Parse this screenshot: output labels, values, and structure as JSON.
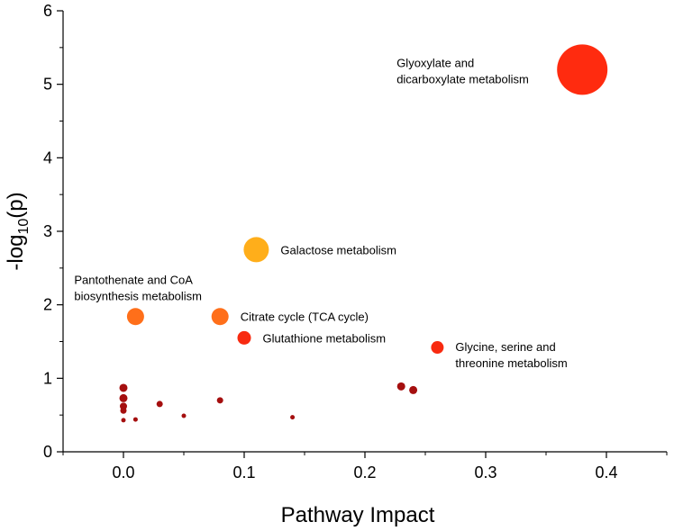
{
  "chart_data": {
    "type": "scatter",
    "title": "",
    "xlabel": "Pathway Impact",
    "ylabel_parts": [
      "-log",
      "10",
      "(p)"
    ],
    "xlim": [
      -0.05,
      0.45
    ],
    "ylim": [
      0,
      6
    ],
    "x_ticks": [
      0.0,
      0.1,
      0.2,
      0.3,
      0.4
    ],
    "x_tick_labels": [
      "0.0",
      "0.1",
      "0.2",
      "0.3",
      "0.4"
    ],
    "y_ticks": [
      0,
      1,
      2,
      3,
      4,
      5,
      6
    ],
    "y_tick_labels": [
      "0",
      "1",
      "2",
      "3",
      "4",
      "5",
      "6"
    ],
    "grid": false,
    "legend": "none",
    "points": [
      {
        "x": 0.38,
        "y": 5.2,
        "size": 28,
        "color": "#ff2b0f",
        "label": [
          "Glyoxylate and",
          "dicarboxylate metabolism"
        ],
        "label_pos": "left-above"
      },
      {
        "x": 0.11,
        "y": 2.75,
        "size": 14,
        "color": "#ffae1a",
        "label": [
          "Galactose metabolism"
        ],
        "label_pos": "right"
      },
      {
        "x": 0.01,
        "y": 1.84,
        "size": 9.5,
        "color": "#ff6f1a",
        "label": [
          "Pantothenate and CoA",
          "biosynthesis metabolism"
        ],
        "label_pos": "above"
      },
      {
        "x": 0.08,
        "y": 1.84,
        "size": 9.5,
        "color": "#ff6f1a",
        "label": [
          "Citrate cycle (TCA cycle)"
        ],
        "label_pos": "right"
      },
      {
        "x": 0.1,
        "y": 1.55,
        "size": 7.5,
        "color": "#f82a10",
        "label": [
          "Glutathione metabolism"
        ],
        "label_pos": "right"
      },
      {
        "x": 0.26,
        "y": 1.42,
        "size": 7,
        "color": "#f82a10",
        "label": [
          "Glycine, serine and",
          "threonine metabolism"
        ],
        "label_pos": "right"
      },
      {
        "x": 0.0,
        "y": 0.87,
        "size": 4.5,
        "color": "#a50f0f"
      },
      {
        "x": 0.0,
        "y": 0.73,
        "size": 4.5,
        "color": "#a50f0f"
      },
      {
        "x": 0.0,
        "y": 0.62,
        "size": 4,
        "color": "#a50f0f"
      },
      {
        "x": 0.0,
        "y": 0.56,
        "size": 3.5,
        "color": "#a50f0f"
      },
      {
        "x": 0.0,
        "y": 0.43,
        "size": 2.5,
        "color": "#a50f0f"
      },
      {
        "x": 0.01,
        "y": 0.44,
        "size": 2.5,
        "color": "#a50f0f"
      },
      {
        "x": 0.03,
        "y": 0.65,
        "size": 3.5,
        "color": "#a50f0f"
      },
      {
        "x": 0.05,
        "y": 0.49,
        "size": 2.5,
        "color": "#a50f0f"
      },
      {
        "x": 0.08,
        "y": 0.7,
        "size": 3.5,
        "color": "#a50f0f"
      },
      {
        "x": 0.14,
        "y": 0.47,
        "size": 2.5,
        "color": "#a50f0f"
      },
      {
        "x": 0.23,
        "y": 0.89,
        "size": 4.5,
        "color": "#a50f0f"
      },
      {
        "x": 0.24,
        "y": 0.84,
        "size": 4.5,
        "color": "#a50f0f"
      }
    ]
  }
}
